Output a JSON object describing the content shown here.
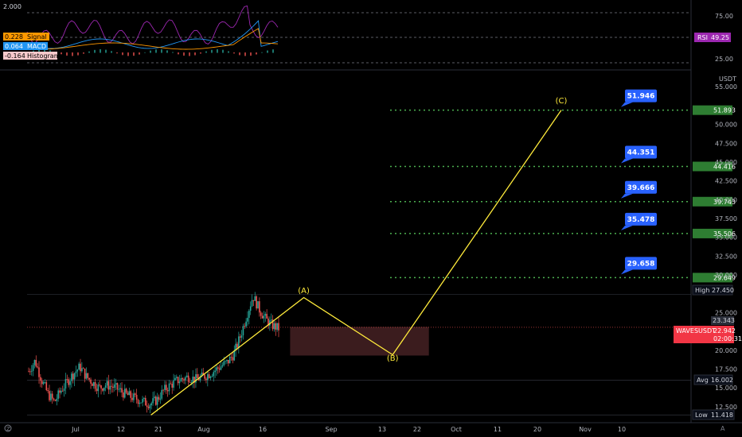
{
  "chart_data": {
    "type": "candlestick",
    "symbol": "WAVESUSDT",
    "currency": "USDT",
    "timeframe_labels": [
      "Jul",
      "12",
      "21",
      "Aug",
      "16",
      "Sep",
      "13",
      "22",
      "Oct",
      "11",
      "20",
      "Nov",
      "10"
    ],
    "price_ticks": [
      "55.000",
      "50.000",
      "47.500",
      "45.000",
      "42.500",
      "40.000",
      "37.500",
      "35.000",
      "32.500",
      "30.000",
      "25.000",
      "20.000",
      "17.500",
      "15.000",
      "12.500"
    ],
    "ylim": [
      10.8,
      56.5
    ],
    "candles_seed": [
      17.2,
      18.6,
      16.1,
      14.2,
      13.1,
      14.6,
      15.8,
      16.9,
      17.8,
      16.5,
      15.7,
      15.0,
      15.4,
      15.2,
      14.8,
      14.2,
      13.8,
      13.5,
      13.1,
      12.9,
      13.4,
      14.6,
      15.3,
      15.9,
      16.2,
      16.5,
      16.1,
      16.4,
      16.8,
      17.3,
      17.9,
      18.4,
      19.5,
      21.8,
      24.6,
      27.2,
      25.4,
      24.1,
      23.3,
      22.9
    ],
    "levels": [
      {
        "price": 51.893,
        "label": "51.893",
        "callout": "51.946"
      },
      {
        "price": 44.416,
        "label": "44.416",
        "callout": "44.351"
      },
      {
        "price": 39.743,
        "label": "39.743",
        "callout": "39.666"
      },
      {
        "price": 35.506,
        "label": "35.506",
        "callout": "35.478"
      },
      {
        "price": 29.649,
        "label": "29.649",
        "callout": "29.658"
      }
    ],
    "high": {
      "label": "High",
      "value": "27.450",
      "price": 27.45
    },
    "avg": {
      "label": "Avg",
      "value": "16.002",
      "price": 16.002
    },
    "low": {
      "label": "Low",
      "value": "11.418",
      "price": 11.418
    },
    "price_23343": {
      "value": "23.343",
      "price": 23.343
    },
    "last_price": {
      "symbol": "WAVESUSDT",
      "value": "22.942",
      "countdown": "02:00:31",
      "price": 22.942
    },
    "wave_labels": [
      {
        "text": "(A)",
        "date_index": 4.6,
        "price": 27.6
      },
      {
        "text": "(B)",
        "date_index": 6.3,
        "price": 18.6
      },
      {
        "text": "(C)",
        "date_index": 10.5,
        "price": 52.8
      }
    ],
    "wave_path": [
      {
        "date_index": 1.8,
        "price": 11.4
      },
      {
        "date_index": 4.6,
        "price": 27.0
      },
      {
        "date_index": 6.3,
        "price": 19.4
      },
      {
        "date_index": 10.5,
        "price": 51.9
      }
    ],
    "zone": {
      "price_top": 23.1,
      "price_bottom": 19.3,
      "date_start": 4.4,
      "date_end": 7.3
    }
  },
  "indicators": {
    "macd": {
      "scale_top": "2.000",
      "signal_value": "0.228",
      "signal_label": "Signal",
      "macd_value": "0.064",
      "macd_label": "MACD",
      "hist_value": "-0.164",
      "hist_label": "Histogram"
    },
    "rsi": {
      "label": "RSI",
      "value": "49.25",
      "ticks": [
        "75.00",
        "25.00"
      ]
    }
  },
  "colors": {
    "background": "#000000",
    "up": "#26a69a",
    "down": "#ef5350",
    "wave": "#ffeb3b",
    "level_line": "#4caf50",
    "level_tag": "#2e7d32",
    "callout": "#2962ff",
    "last_price": "#f23645",
    "rsi_tag": "#9c27b0",
    "zone": "#4a2326"
  },
  "icons": {
    "tv_logo": "tradingview-logo-icon",
    "auto_scale": "auto-scale-icon",
    "zoom": "zoom-icon"
  }
}
